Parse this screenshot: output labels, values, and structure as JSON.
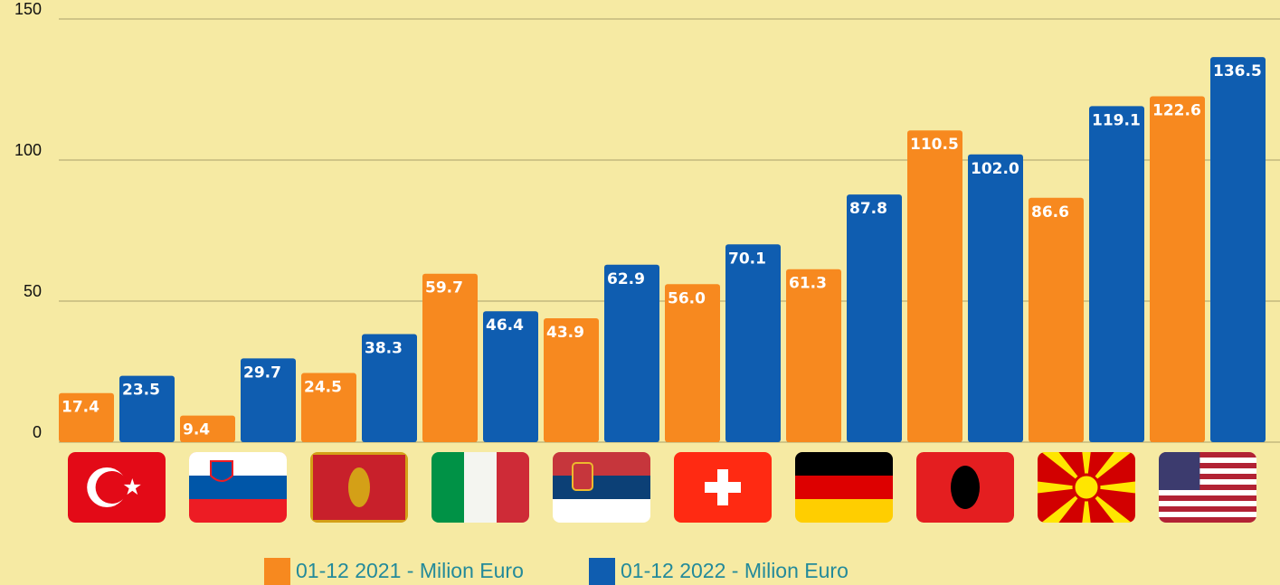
{
  "chart_data": {
    "type": "bar",
    "categories": [
      null,
      null,
      null,
      null,
      null,
      null,
      null,
      null,
      null,
      null
    ],
    "series": [
      {
        "name": "01-12 2021 - Milion Euro",
        "color": "#f7891f",
        "values": [
          17.4,
          9.4,
          24.5,
          59.7,
          43.9,
          56.0,
          61.3,
          110.5,
          86.6,
          122.6
        ],
        "value_labels": [
          "17.4",
          "9.4",
          "24.5",
          "59.7",
          "43.9",
          "56.0",
          "61.3",
          "110.5",
          "86.6",
          "122.6"
        ]
      },
      {
        "name": "01-12 2022 - Milion Euro",
        "color": "#0f5db0",
        "values": [
          23.5,
          29.7,
          38.3,
          46.4,
          62.9,
          70.1,
          87.8,
          102.0,
          119.1,
          136.5
        ],
        "value_labels": [
          "23.5",
          "29.7",
          "38.3",
          "46.4",
          "62.9",
          "70.1",
          "87.8",
          "102.0",
          "119.1",
          "136.5"
        ]
      }
    ],
    "ylim": [
      0,
      150
    ],
    "yticks": [
      0,
      50,
      100,
      150
    ],
    "grid": true,
    "legend": "bottom"
  }
}
